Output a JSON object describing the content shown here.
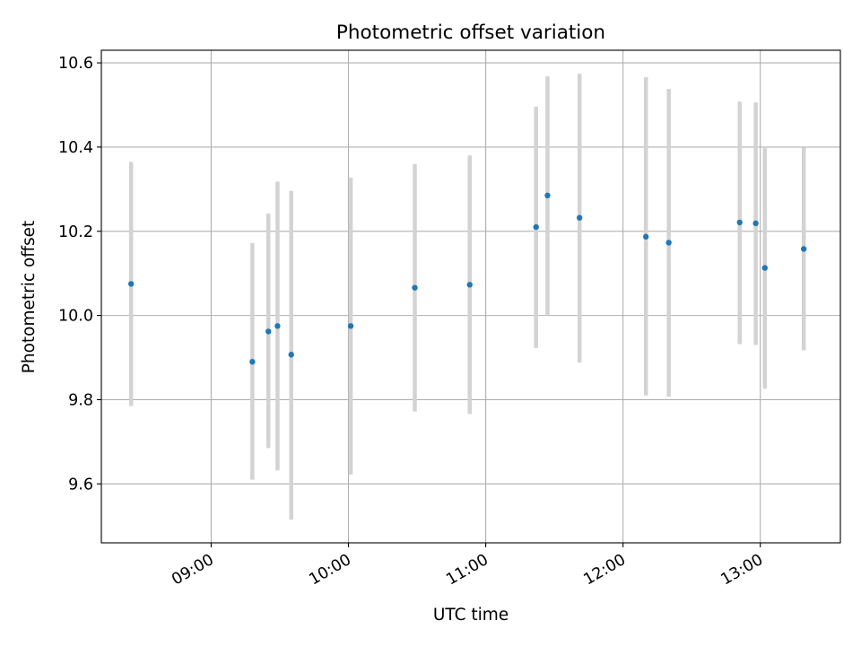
{
  "chart_data": {
    "type": "scatter",
    "title": "Photometric offset variation",
    "xlabel": "UTC time",
    "ylabel": "Photometric offset",
    "x_axis": {
      "kind": "time",
      "range": [
        "08:12",
        "13:35"
      ],
      "ticks": [
        "09:00",
        "10:00",
        "11:00",
        "12:00",
        "13:00"
      ]
    },
    "y_axis": {
      "range": [
        9.46,
        10.63
      ],
      "ticks": [
        "9.6",
        "9.8",
        "10.0",
        "10.2",
        "10.4",
        "10.6"
      ]
    },
    "grid": true,
    "points": [
      {
        "x": "08:25",
        "y": 10.075,
        "y_low": 9.785,
        "y_high": 10.365
      },
      {
        "x": "09:18",
        "y": 9.89,
        "y_low": 9.61,
        "y_high": 10.172
      },
      {
        "x": "09:25",
        "y": 9.962,
        "y_low": 9.685,
        "y_high": 10.242
      },
      {
        "x": "09:29",
        "y": 9.975,
        "y_low": 9.632,
        "y_high": 10.318
      },
      {
        "x": "09:35",
        "y": 9.907,
        "y_low": 9.515,
        "y_high": 10.296
      },
      {
        "x": "10:01",
        "y": 9.975,
        "y_low": 9.622,
        "y_high": 10.327
      },
      {
        "x": "10:29",
        "y": 10.066,
        "y_low": 9.772,
        "y_high": 10.36
      },
      {
        "x": "10:53",
        "y": 10.073,
        "y_low": 9.766,
        "y_high": 10.38
      },
      {
        "x": "11:22",
        "y": 10.21,
        "y_low": 9.923,
        "y_high": 10.496
      },
      {
        "x": "11:27",
        "y": 10.285,
        "y_low": 10.0,
        "y_high": 10.568
      },
      {
        "x": "11:41",
        "y": 10.232,
        "y_low": 9.888,
        "y_high": 10.574
      },
      {
        "x": "12:10",
        "y": 10.187,
        "y_low": 9.81,
        "y_high": 10.566
      },
      {
        "x": "12:20",
        "y": 10.173,
        "y_low": 9.807,
        "y_high": 10.538
      },
      {
        "x": "12:51",
        "y": 10.221,
        "y_low": 9.932,
        "y_high": 10.508
      },
      {
        "x": "12:58",
        "y": 10.219,
        "y_low": 9.93,
        "y_high": 10.506
      },
      {
        "x": "13:02",
        "y": 10.113,
        "y_low": 9.826,
        "y_high": 10.398
      },
      {
        "x": "13:19",
        "y": 10.158,
        "y_low": 9.917,
        "y_high": 10.399
      }
    ],
    "colors": {
      "point": "#1f77b4",
      "errorbar": "#d3d3d3",
      "grid": "#b0b0b0",
      "axes": "#000000"
    }
  }
}
